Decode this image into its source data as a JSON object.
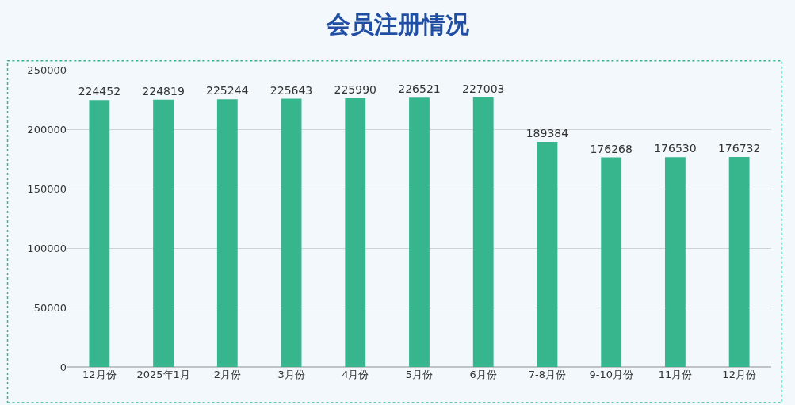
{
  "chart_data": {
    "type": "bar",
    "title": "会员注册情况",
    "categories": [
      "12月份",
      "2025年1月",
      "2月份",
      "3月份",
      "4月份",
      "5月份",
      "6月份",
      "7-8月份",
      "9-10月份",
      "11月份",
      "12月份"
    ],
    "values": [
      224452,
      224819,
      225244,
      225643,
      225990,
      226521,
      227003,
      189384,
      176268,
      176530,
      176732
    ],
    "color": "#37b68e",
    "ylim": [
      0,
      250000
    ],
    "yticks": [
      0,
      50000,
      100000,
      150000,
      200000,
      250000
    ],
    "grid": "y",
    "data_labels": true
  }
}
